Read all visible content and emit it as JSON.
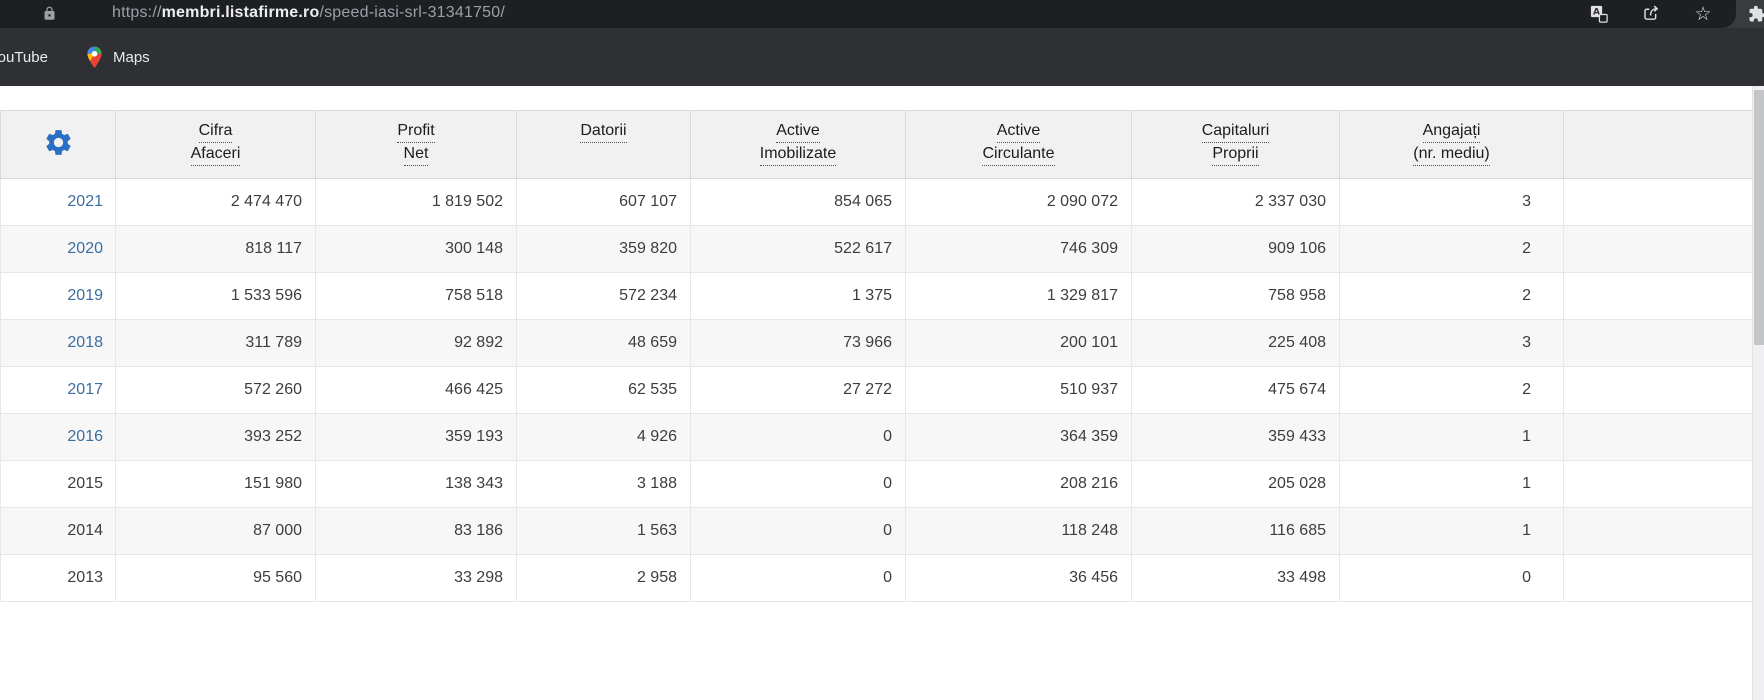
{
  "browser": {
    "toolbar": {
      "url": {
        "scheme": "https://",
        "domain": "membri.listafirme.ro",
        "path": "/speed-iasi-srl-31341750/"
      },
      "icons": {
        "lock": "padlock",
        "translate": "google-translate",
        "share": "share-arrow",
        "star_glyph": "☆",
        "extensions": "puzzle-piece"
      }
    },
    "bookmarks_bar": {
      "items": [
        {
          "label": "YouTube"
        },
        {
          "label": "Maps"
        }
      ]
    }
  },
  "table": {
    "settings_icon": "gear",
    "columns": [
      {
        "id": "cifra_afaceri",
        "label": "Cifra Afaceri",
        "lines": [
          "Cifra",
          "Afaceri"
        ]
      },
      {
        "id": "profit_net",
        "label": "Profit Net",
        "lines": [
          "Profit",
          "Net"
        ]
      },
      {
        "id": "datorii",
        "label": "Datorii",
        "lines": [
          "Datorii"
        ]
      },
      {
        "id": "active_imobilizate",
        "label": "Active Imobilizate",
        "lines": [
          "Active",
          "Imobilizate"
        ]
      },
      {
        "id": "active_circulante",
        "label": "Active Circulante",
        "lines": [
          "Active",
          "Circulante"
        ]
      },
      {
        "id": "capitaluri_proprii",
        "label": "Capitaluri Proprii",
        "lines": [
          "Capitaluri",
          "Proprii"
        ]
      },
      {
        "id": "angajati",
        "label": "Angajați (nr. mediu)",
        "lines": [
          "Angajați",
          "(nr. mediu)"
        ]
      }
    ],
    "rows": [
      {
        "year": "2021",
        "is_link": true,
        "values": [
          "2 474 470",
          "1 819 502",
          "607 107",
          "854 065",
          "2 090 072",
          "2 337 030",
          "3"
        ]
      },
      {
        "year": "2020",
        "is_link": true,
        "values": [
          "818 117",
          "300 148",
          "359 820",
          "522 617",
          "746 309",
          "909 106",
          "2"
        ]
      },
      {
        "year": "2019",
        "is_link": true,
        "values": [
          "1 533 596",
          "758 518",
          "572 234",
          "1 375",
          "1 329 817",
          "758 958",
          "2"
        ]
      },
      {
        "year": "2018",
        "is_link": true,
        "values": [
          "311 789",
          "92 892",
          "48 659",
          "73 966",
          "200 101",
          "225 408",
          "3"
        ]
      },
      {
        "year": "2017",
        "is_link": true,
        "values": [
          "572 260",
          "466 425",
          "62 535",
          "27 272",
          "510 937",
          "475 674",
          "2"
        ]
      },
      {
        "year": "2016",
        "is_link": true,
        "values": [
          "393 252",
          "359 193",
          "4 926",
          "0",
          "364 359",
          "359 433",
          "1"
        ]
      },
      {
        "year": "2015",
        "is_link": false,
        "values": [
          "151 980",
          "138 343",
          "3 188",
          "0",
          "208 216",
          "205 028",
          "1"
        ]
      },
      {
        "year": "2014",
        "is_link": false,
        "values": [
          "87 000",
          "83 186",
          "1 563",
          "0",
          "118 248",
          "116 685",
          "1"
        ]
      },
      {
        "year": "2013",
        "is_link": false,
        "values": [
          "95 560",
          "33 298",
          "2 958",
          "0",
          "36 456",
          "33 498",
          "0"
        ]
      }
    ]
  },
  "colors": {
    "gear_blue": "#2b6fc4",
    "year_link_blue": "#3d6d9e",
    "header_bg": "#f1f1f1",
    "row_alt_bg": "#f7f7f8",
    "chrome_dark": "#1e1f23",
    "bookmarks_bg": "#2f3034"
  }
}
